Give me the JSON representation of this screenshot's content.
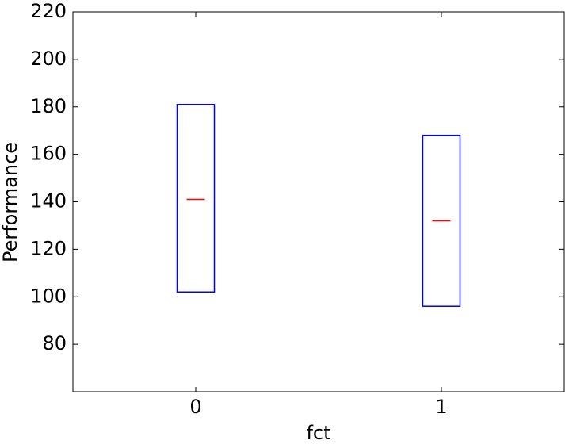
{
  "chart_data": {
    "type": "box",
    "x_label": "fct",
    "y_label": "Performance",
    "categories": [
      "0",
      "1"
    ],
    "boxes": [
      {
        "q1": 102,
        "median": 141,
        "q3": 181
      },
      {
        "q1": 96,
        "median": 132,
        "q3": 168
      }
    ],
    "box_color": "#0000ff",
    "median_color": "#ff0000",
    "ylim": [
      60,
      220
    ],
    "yticks": [
      80,
      100,
      120,
      140,
      160,
      180,
      200,
      220
    ],
    "grid": false
  }
}
